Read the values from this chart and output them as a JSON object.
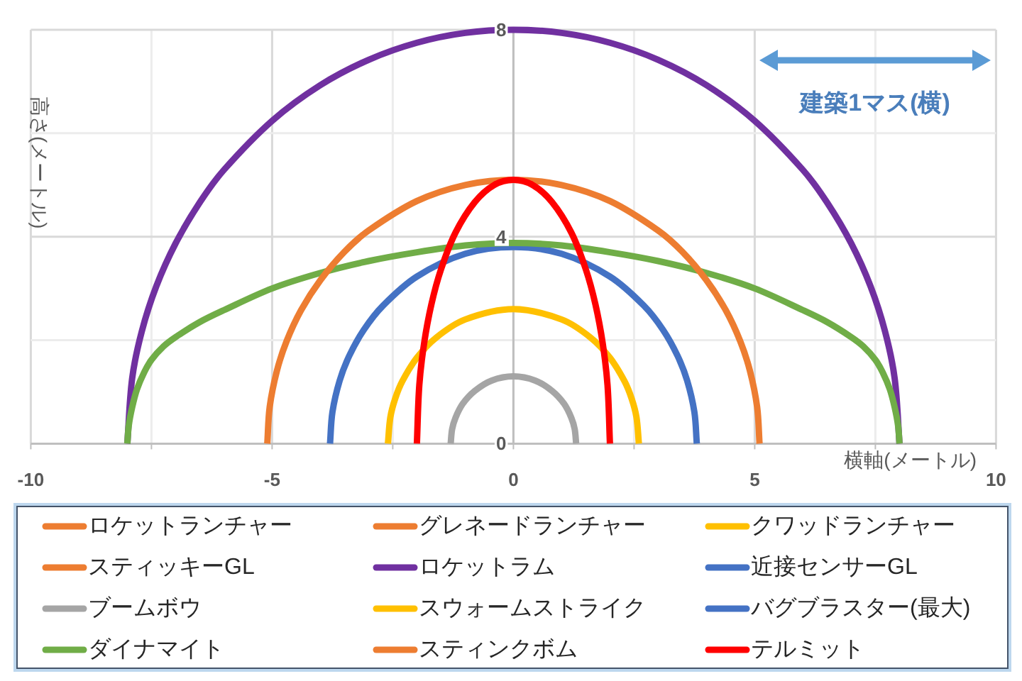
{
  "chart_data": {
    "type": "line",
    "xlabel": "横軸(メートル)",
    "ylabel": "高さ(メートル)",
    "xlim": [
      -10,
      10
    ],
    "ylim": [
      0,
      8
    ],
    "xticks": [
      -10,
      {
        "value": -7.5,
        "label": null
      },
      -5,
      {
        "value": -2.5,
        "label": null
      },
      0,
      {
        "value": 2.5,
        "label": null
      },
      5,
      {
        "value": 7.5,
        "label": null
      },
      10
    ],
    "yticks": [
      0,
      {
        "value": 2,
        "label": null
      },
      4,
      {
        "value": 6,
        "label": null
      },
      8
    ],
    "grid": true,
    "legend": "bottom",
    "annotations": [
      "建築1マス(横)"
    ],
    "series": [
      {
        "name": "ロケットランチャー",
        "color": "#ed7d31"
      },
      {
        "name": "グレネードランチャー",
        "color": "#ed7d31"
      },
      {
        "name": "クワッドランチャー",
        "color": "#ffc000"
      },
      {
        "name": "スティッキーGL",
        "color": "#ed7d31"
      },
      {
        "name": "ロケットラム",
        "color": "#7030a0",
        "x": [
          -8,
          -7.9,
          -7.7,
          -7.4,
          -7,
          -6.5,
          -6,
          -5,
          -4,
          -3,
          -2,
          -1,
          0,
          1,
          2,
          3,
          4,
          5,
          6,
          6.5,
          7,
          7.4,
          7.7,
          7.9,
          8
        ],
        "values": [
          0,
          1.26,
          2.17,
          3.04,
          3.87,
          4.66,
          5.29,
          6.24,
          6.93,
          7.42,
          7.75,
          7.94,
          8,
          7.94,
          7.75,
          7.42,
          6.93,
          6.24,
          5.29,
          4.66,
          3.87,
          3.04,
          2.17,
          1.26,
          0
        ]
      },
      {
        "name": "近接センサーGL",
        "color": "#4472c4"
      },
      {
        "name": "ブームボウ",
        "color": "#a5a5a5",
        "x": [
          -1.3,
          -1.27,
          -1.2,
          -1.05,
          -0.8,
          -0.45,
          0,
          0.45,
          0.8,
          1.05,
          1.2,
          1.27,
          1.3
        ],
        "values": [
          0,
          0.28,
          0.5,
          0.77,
          1.02,
          1.22,
          1.3,
          1.22,
          1.02,
          0.77,
          0.5,
          0.28,
          0
        ]
      },
      {
        "name": "スウォームストライク",
        "color": "#ffc000",
        "x": [
          -2.6,
          -2.55,
          -2.45,
          -2.3,
          -2,
          -1.6,
          -1,
          0,
          1,
          1.6,
          2,
          2.3,
          2.45,
          2.55,
          2.6
        ],
        "values": [
          0,
          0.51,
          0.87,
          1.21,
          1.66,
          2.05,
          2.4,
          2.6,
          2.4,
          2.05,
          1.66,
          1.21,
          0.87,
          0.51,
          0
        ]
      },
      {
        "name": "バグブラスター(最大)",
        "color": "#4472c4",
        "x": [
          -3.8,
          -3.75,
          -3.6,
          -3.4,
          -3.1,
          -2.7,
          -2,
          -1,
          0,
          1,
          2,
          2.7,
          3.1,
          3.4,
          3.6,
          3.75,
          3.8
        ],
        "values": [
          0,
          0.61,
          1.22,
          1.7,
          2.2,
          2.67,
          3.23,
          3.67,
          3.8,
          3.67,
          3.23,
          2.67,
          2.2,
          1.7,
          1.22,
          0.61,
          0
        ]
      },
      {
        "name": "ダイナマイト",
        "color": "#70ad47",
        "x": [
          -8,
          -7.97,
          -7.9,
          -7.8,
          -7.65,
          -7.5,
          -7.25,
          -7,
          -6.5,
          -6,
          -5,
          -4,
          -3,
          -2,
          -1,
          0,
          1,
          2,
          3,
          4,
          5,
          6,
          6.5,
          7,
          7.25,
          7.5,
          7.65,
          7.8,
          7.9,
          7.97,
          8
        ],
        "values": [
          0,
          0.35,
          0.7,
          1.05,
          1.38,
          1.62,
          1.88,
          2.06,
          2.35,
          2.58,
          3.0,
          3.3,
          3.53,
          3.7,
          3.83,
          3.88,
          3.83,
          3.7,
          3.53,
          3.3,
          3.0,
          2.58,
          2.35,
          2.06,
          1.88,
          1.62,
          1.38,
          1.05,
          0.7,
          0.35,
          0
        ]
      },
      {
        "name": "スティンクボム",
        "color": "#ed7d31",
        "x": [
          -5.1,
          -5.05,
          -4.9,
          -4.7,
          -4.4,
          -4,
          -3.5,
          -3,
          -2,
          -1,
          0,
          1,
          2,
          3,
          3.5,
          4,
          4.4,
          4.7,
          4.9,
          5.05,
          5.1
        ],
        "values": [
          0,
          0.71,
          1.41,
          1.98,
          2.58,
          3.16,
          3.71,
          4.12,
          4.69,
          5.0,
          5.1,
          5.0,
          4.69,
          4.12,
          3.71,
          3.16,
          2.58,
          1.98,
          1.41,
          0.71,
          0
        ]
      },
      {
        "name": "テルミット",
        "color": "#ff0000",
        "x": [
          -2,
          -1.95,
          -1.85,
          -1.7,
          -1.5,
          -1.2,
          -0.8,
          -0.4,
          0,
          0.4,
          0.8,
          1.2,
          1.5,
          1.7,
          1.85,
          1.95,
          2
        ],
        "values": [
          0,
          1.13,
          1.94,
          2.69,
          3.37,
          4.08,
          4.67,
          5.0,
          5.1,
          5.0,
          4.67,
          4.08,
          3.37,
          2.69,
          1.94,
          1.13,
          0
        ]
      }
    ]
  }
}
